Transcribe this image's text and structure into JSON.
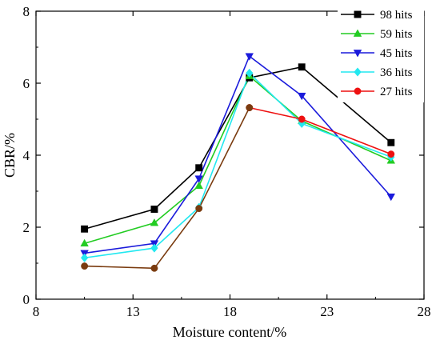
{
  "chart_data": {
    "type": "line",
    "xlabel": "Moisture content/%",
    "ylabel": "CBR/%",
    "xlim": [
      8,
      28
    ],
    "ylim": [
      0,
      8
    ],
    "xticks": [
      "8",
      "13",
      "18",
      "23",
      "28"
    ],
    "yticks": [
      "0",
      "2",
      "4",
      "6",
      "8"
    ],
    "legend_position": "top-right",
    "series": [
      {
        "name": "98 hits",
        "color": "#000000",
        "marker": "square",
        "x": [
          10.5,
          14.1,
          16.4,
          19.0,
          21.7,
          26.3
        ],
        "y": [
          1.95,
          2.5,
          3.65,
          6.15,
          6.45,
          4.35
        ]
      },
      {
        "name": "59 hits",
        "color": "#22cc22",
        "marker": "triangle-up",
        "x": [
          10.5,
          14.1,
          16.4,
          19.0,
          21.7,
          26.3
        ],
        "y": [
          1.55,
          2.12,
          3.15,
          6.2,
          4.95,
          3.85
        ]
      },
      {
        "name": "45 hits",
        "color": "#1a1adb",
        "marker": "triangle-down",
        "x": [
          10.5,
          14.1,
          16.4,
          19.0,
          21.7,
          26.3
        ],
        "y": [
          1.28,
          1.55,
          3.35,
          6.75,
          5.65,
          2.85
        ]
      },
      {
        "name": "36 hits",
        "color": "#22e8f0",
        "marker": "diamond",
        "x": [
          10.5,
          14.1,
          16.4,
          19.0,
          21.7,
          26.3
        ],
        "y": [
          1.15,
          1.42,
          2.55,
          6.28,
          4.88,
          3.95
        ]
      },
      {
        "name": "27 hits",
        "color": "#ee1111",
        "marker": "circle",
        "x": [
          19.0,
          21.7,
          26.3
        ],
        "y": [
          5.32,
          5.0,
          4.03
        ]
      },
      {
        "name": "",
        "color": "#7a3b0f",
        "marker": "circle",
        "x": [
          10.5,
          14.1,
          16.4,
          19.0
        ],
        "y": [
          0.92,
          0.86,
          2.52,
          5.32
        ]
      }
    ]
  }
}
